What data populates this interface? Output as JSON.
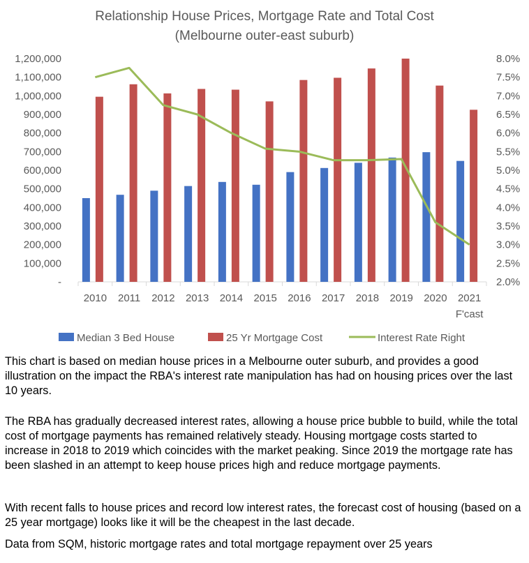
{
  "chart_data": {
    "type": "bar",
    "title_line1": "Relationship House Prices, Mortgage Rate and Total Cost",
    "title_line2": "(Melbourne outer-east suburb)",
    "categories": [
      "2010",
      "2011",
      "2012",
      "2013",
      "2014",
      "2015",
      "2016",
      "2017",
      "2018",
      "2019",
      "2020",
      "2021"
    ],
    "category_sublabels": [
      "",
      "",
      "",
      "",
      "",
      "",
      "",
      "",
      "",
      "",
      "",
      "F'cast"
    ],
    "series": [
      {
        "name": "Median 3 Bed House",
        "type": "bar",
        "axis": "left",
        "color": "#4472C4",
        "values": [
          450000,
          468000,
          490000,
          515000,
          537000,
          522000,
          590000,
          612000,
          640000,
          668000,
          697000,
          650000
        ]
      },
      {
        "name": "25 Yr Mortgage Cost",
        "type": "bar",
        "axis": "left",
        "color": "#C0504D",
        "values": [
          995000,
          1062000,
          1013000,
          1037000,
          1033000,
          970000,
          1085000,
          1097000,
          1147000,
          1200000,
          1055000,
          925000
        ]
      },
      {
        "name": "Interest Rate Right",
        "type": "line",
        "axis": "right",
        "color": "#9BBB59",
        "values": [
          7.5,
          7.75,
          6.75,
          6.5,
          6.0,
          5.58,
          5.5,
          5.27,
          5.27,
          5.3,
          3.6,
          3.0
        ]
      }
    ],
    "y_left": {
      "min": 0,
      "max": 1200000,
      "step": 100000,
      "ticks": [
        "-",
        "100,000",
        "200,000",
        "300,000",
        "400,000",
        "500,000",
        "600,000",
        "700,000",
        "800,000",
        "900,000",
        "1,000,000",
        "1,100,000",
        "1,200,000"
      ]
    },
    "y_right": {
      "min": 2.0,
      "max": 8.0,
      "step": 0.5,
      "ticks": [
        "2.0%",
        "2.5%",
        "3.0%",
        "3.5%",
        "4.0%",
        "4.5%",
        "5.0%",
        "5.5%",
        "6.0%",
        "6.5%",
        "7.0%",
        "7.5%",
        "8.0%"
      ]
    },
    "grid": false,
    "legend_position": "bottom"
  },
  "text": {
    "paragraph1": "This chart is based on median house prices in a Melbourne outer suburb, and provides a good illustration on the impact the RBA's interest rate manipulation has had on housing prices over the last 10 years.",
    "paragraph2": "The RBA has gradually decreased interest rates, allowing a house price bubble to build, while the total cost of mortgage payments has remained relatively steady. Housing mortgage costs started to increase in 2018 to 2019 which coincides with the market peaking. Since 2019 the mortgage rate has been slashed in an attempt to keep house prices high and reduce mortgage payments.",
    "paragraph3": "With recent falls to house prices and record low interest rates, the forecast cost of housing (based on a 25 year mortgage) looks like it will be the cheapest in the last decade.",
    "source_note": "Data from SQM, historic mortgage rates and total mortgage repayment over 25 years"
  }
}
